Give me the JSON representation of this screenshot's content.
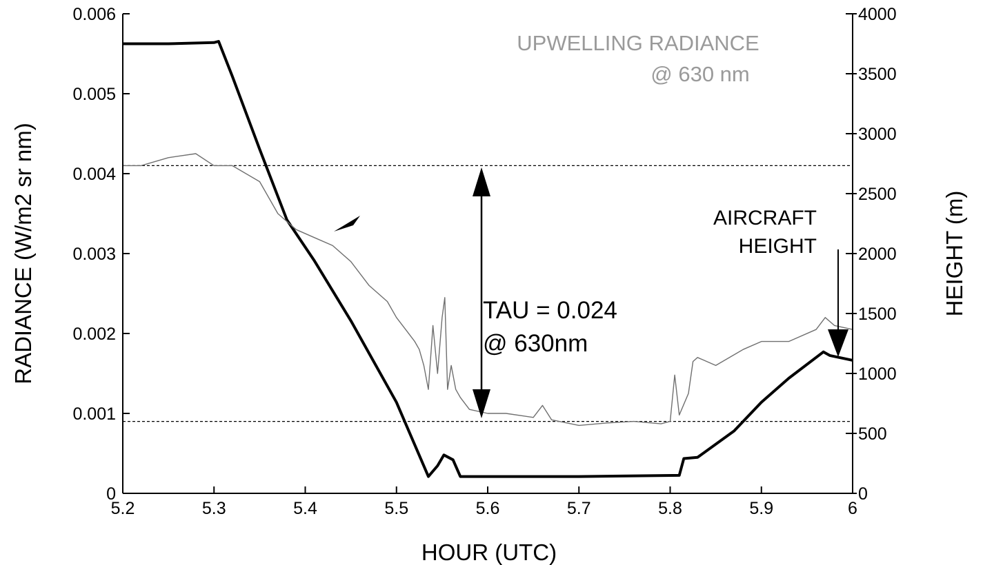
{
  "chart_data": {
    "type": "line",
    "title_inset": [
      "UPWELLING RADIANCE",
      "@ 630 nm"
    ],
    "xlabel": "HOUR (UTC)",
    "ylabel_left": "RADIANCE (W/m2 sr nm)",
    "ylabel_right": "HEIGHT (m)",
    "xlim": [
      5.2,
      6.0
    ],
    "ylim_left": [
      0,
      0.006
    ],
    "ylim_right": [
      0,
      4000
    ],
    "x_ticks": [
      "5.2",
      "5.3",
      "5.4",
      "5.5",
      "5.6",
      "5.7",
      "5.8",
      "5.9",
      "6"
    ],
    "y_left_ticks": [
      "0",
      "0.001",
      "0.002",
      "0.003",
      "0.004",
      "0.005",
      "0.006"
    ],
    "y_right_ticks": [
      "0",
      "500",
      "1000",
      "1500",
      "2000",
      "2500",
      "3000",
      "3500",
      "4000"
    ],
    "reference_lines": [
      {
        "axis": "left",
        "value": 0.0041,
        "style": "dashed"
      },
      {
        "axis": "left",
        "value": 0.0009,
        "style": "dashed"
      }
    ],
    "annotations": {
      "tau_line1": "TAU = 0.024",
      "tau_line2": "@ 630nm",
      "aircraft_line1": "AIRCRAFT",
      "aircraft_line2": "HEIGHT"
    },
    "series": [
      {
        "axis": "right",
        "style": "thick-black",
        "x": [
          5.2,
          5.25,
          5.3,
          5.305,
          5.32,
          5.35,
          5.38,
          5.41,
          5.45,
          5.5,
          5.535,
          5.545,
          5.552,
          5.562,
          5.57,
          5.6,
          5.7,
          5.81,
          5.815,
          5.83,
          5.87,
          5.9,
          5.93,
          5.968,
          5.975,
          6.0
        ],
        "y": [
          3750,
          3750,
          3760,
          3770,
          3480,
          2870,
          2280,
          1940,
          1440,
          760,
          140,
          230,
          320,
          280,
          140,
          140,
          140,
          150,
          290,
          300,
          520,
          760,
          960,
          1180,
          1150,
          1110
        ]
      },
      {
        "axis": "left",
        "style": "thin-gray",
        "x": [
          5.2,
          5.22,
          5.25,
          5.28,
          5.3,
          5.32,
          5.35,
          5.37,
          5.39,
          5.41,
          5.43,
          5.45,
          5.47,
          5.49,
          5.5,
          5.51,
          5.52,
          5.525,
          5.53,
          5.535,
          5.54,
          5.545,
          5.55,
          5.553,
          5.556,
          5.56,
          5.565,
          5.57,
          5.58,
          5.6,
          5.62,
          5.65,
          5.66,
          5.67,
          5.7,
          5.73,
          5.76,
          5.79,
          5.8,
          5.805,
          5.81,
          5.82,
          5.825,
          5.83,
          5.85,
          5.88,
          5.9,
          5.93,
          5.96,
          5.97,
          5.98,
          6.0
        ],
        "y": [
          0.0041,
          0.0041,
          0.0042,
          0.00425,
          0.0041,
          0.0041,
          0.0039,
          0.0035,
          0.0033,
          0.0032,
          0.0031,
          0.0029,
          0.0026,
          0.0024,
          0.0022,
          0.00205,
          0.0019,
          0.0018,
          0.0016,
          0.0013,
          0.0021,
          0.0015,
          0.0022,
          0.00245,
          0.0013,
          0.0016,
          0.0013,
          0.0012,
          0.00105,
          0.001,
          0.001,
          0.00095,
          0.0011,
          0.00092,
          0.00085,
          0.00088,
          0.0009,
          0.00087,
          0.0009,
          0.00148,
          0.00098,
          0.00125,
          0.00165,
          0.0017,
          0.0016,
          0.0018,
          0.0019,
          0.0019,
          0.00205,
          0.0022,
          0.0021,
          0.00205
        ]
      }
    ]
  }
}
